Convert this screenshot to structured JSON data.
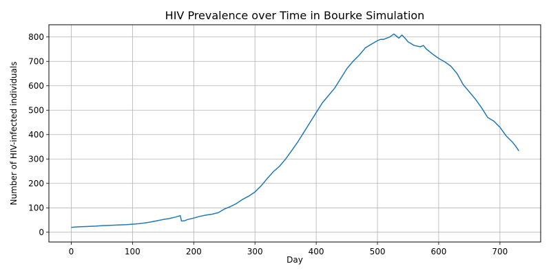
{
  "chart_data": {
    "type": "line",
    "title": "HIV Prevalence over Time in Bourke Simulation",
    "xlabel": "Day",
    "ylabel": "Number of HIV-infected individuals",
    "xlim": [
      -36.5,
      766.5
    ],
    "ylim": [
      -40,
      850
    ],
    "xticks": [
      0,
      100,
      200,
      300,
      400,
      500,
      600,
      700
    ],
    "yticks": [
      0,
      100,
      200,
      300,
      400,
      500,
      600,
      700,
      800
    ],
    "grid": true,
    "line_color": "#1f77b4",
    "series": [
      {
        "x": [
          0,
          10,
          20,
          30,
          40,
          50,
          60,
          70,
          80,
          90,
          100,
          110,
          120,
          130,
          140,
          150,
          160,
          170,
          178,
          180,
          185,
          190,
          200,
          210,
          220,
          230,
          240,
          250,
          260,
          270,
          280,
          290,
          300,
          310,
          320,
          330,
          340,
          350,
          360,
          370,
          380,
          390,
          400,
          410,
          420,
          430,
          440,
          450,
          460,
          470,
          480,
          490,
          500,
          505,
          510,
          520,
          527,
          535,
          540,
          545,
          550,
          560,
          570,
          575,
          580,
          590,
          600,
          610,
          620,
          630,
          640,
          650,
          660,
          670,
          680,
          690,
          700,
          710,
          720,
          725,
          731
        ],
        "values": [
          20,
          22,
          23,
          24,
          25,
          27,
          28,
          29,
          30,
          31,
          33,
          35,
          38,
          42,
          47,
          52,
          56,
          62,
          68,
          46,
          47,
          52,
          58,
          65,
          70,
          74,
          80,
          95,
          105,
          118,
          135,
          148,
          165,
          190,
          220,
          248,
          270,
          300,
          335,
          370,
          410,
          450,
          490,
          530,
          560,
          590,
          630,
          670,
          700,
          725,
          755,
          770,
          785,
          790,
          790,
          800,
          812,
          795,
          808,
          795,
          780,
          765,
          760,
          765,
          750,
          730,
          712,
          698,
          680,
          650,
          605,
          575,
          545,
          510,
          470,
          455,
          430,
          395,
          370,
          355,
          333
        ]
      }
    ]
  }
}
